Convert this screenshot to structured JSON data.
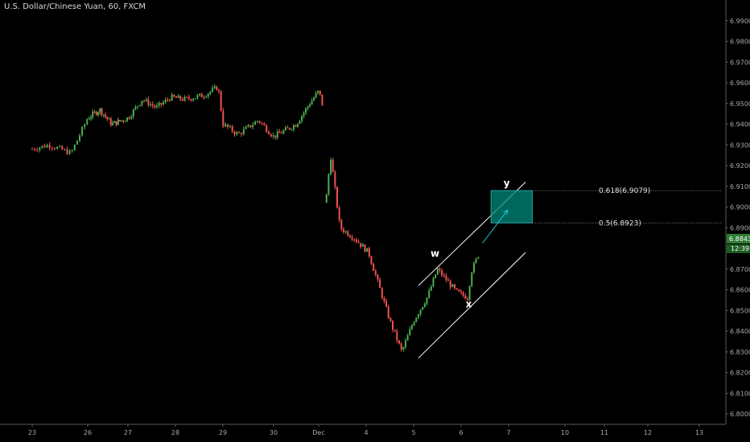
{
  "header": {
    "title": "U.S. Dollar/Chinese Yuan, 60, FXCM"
  },
  "colors": {
    "background": "#000000",
    "up": "#4caf50",
    "down": "#ef5350",
    "axis_text": "#a8a8a8",
    "channel": "#ffffff",
    "target_zone": "#00897b",
    "price_badge": "#2e7d32"
  },
  "chart_data": {
    "type": "candlestick",
    "title": "U.S. Dollar/Chinese Yuan, 60, FXCM",
    "ylim": [
      6.795,
      7.0
    ],
    "y_ticks": [
      "6.8000",
      "6.8100",
      "6.8200",
      "6.8300",
      "6.8400",
      "6.8500",
      "6.8600",
      "6.8700",
      "6.8800",
      "6.8900",
      "6.9000",
      "6.9100",
      "6.9200",
      "6.9300",
      "6.9400",
      "6.9500",
      "6.9600",
      "6.9700",
      "6.9800",
      "6.9900"
    ],
    "x_ticks": [
      {
        "label": "23",
        "day": 0
      },
      {
        "label": "26",
        "day": 1
      },
      {
        "label": "27",
        "day": 2
      },
      {
        "label": "28",
        "day": 3
      },
      {
        "label": "29",
        "day": 4
      },
      {
        "label": "30",
        "day": 5
      },
      {
        "label": "Dec",
        "day": 6
      },
      {
        "label": "4",
        "day": 7
      },
      {
        "label": "5",
        "day": 8
      },
      {
        "label": "6",
        "day": 9
      },
      {
        "label": "7",
        "day": 10
      },
      {
        "label": "10",
        "day": 11
      },
      {
        "label": "11",
        "day": 12
      },
      {
        "label": "12",
        "day": 13
      },
      {
        "label": "13",
        "day": 14
      }
    ],
    "anchors": [
      [
        0,
        6.928
      ],
      [
        0.3,
        6.93
      ],
      [
        0.7,
        6.926
      ],
      [
        1.0,
        6.943
      ],
      [
        1.3,
        6.947
      ],
      [
        1.6,
        6.94
      ],
      [
        2.0,
        6.943
      ],
      [
        2.3,
        6.952
      ],
      [
        2.6,
        6.948
      ],
      [
        2.9,
        6.953
      ],
      [
        3.2,
        6.952
      ],
      [
        3.6,
        6.954
      ],
      [
        3.9,
        6.958
      ],
      [
        4.0,
        6.94
      ],
      [
        4.3,
        6.935
      ],
      [
        4.7,
        6.942
      ],
      [
        5.0,
        6.934
      ],
      [
        5.5,
        6.94
      ],
      [
        5.8,
        6.95
      ],
      [
        6.0,
        6.956
      ],
      [
        6.1,
        6.948
      ],
      [
        6.15,
        6.902
      ],
      [
        6.25,
        6.925
      ],
      [
        6.45,
        6.89
      ],
      [
        6.75,
        6.885
      ],
      [
        7.05,
        6.878
      ],
      [
        7.5,
        6.845
      ],
      [
        7.75,
        6.83
      ],
      [
        8.0,
        6.845
      ],
      [
        8.3,
        6.857
      ],
      [
        8.5,
        6.87
      ],
      [
        8.9,
        6.859
      ],
      [
        9.15,
        6.856
      ],
      [
        9.2,
        6.868
      ],
      [
        9.4,
        6.879
      ]
    ],
    "gap": [
      6.1,
      6.15
    ],
    "current_price": "6.8843",
    "countdown": "12:39",
    "annotations": [
      {
        "label": "w",
        "day": 8.45,
        "price": 6.876
      },
      {
        "label": "x",
        "day": 9.16,
        "price": 6.8515
      },
      {
        "label": "y",
        "day": 9.96,
        "price": 6.91
      }
    ],
    "fib_levels": [
      {
        "label": "0.618(6.9079)",
        "price": 6.9079
      },
      {
        "label": "0.5(6.8923)",
        "price": 6.8923
      }
    ],
    "channel": {
      "upper": [
        [
          8.1,
          6.862
        ],
        [
          10.3,
          6.912
        ]
      ],
      "lower": [
        [
          8.1,
          6.827
        ],
        [
          10.3,
          6.878
        ]
      ]
    },
    "target_zone": {
      "day_from": 9.63,
      "day_to": 10.42,
      "price_from": 6.8923,
      "price_to": 6.9079
    },
    "arrow": {
      "from": [
        9.45,
        6.8825
      ],
      "to": [
        9.98,
        6.8985
      ]
    }
  }
}
